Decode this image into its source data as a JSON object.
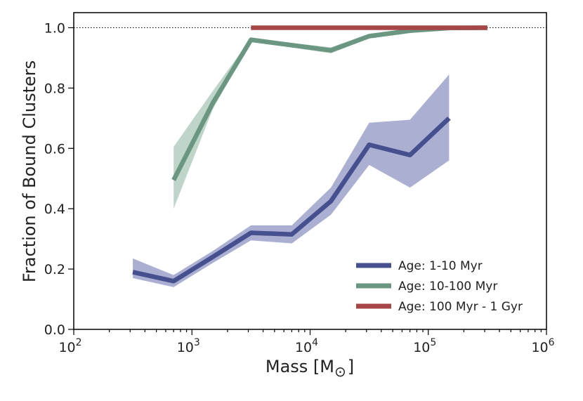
{
  "chart_data": {
    "type": "line",
    "title": "",
    "xlabel": "Mass [M",
    "xlabel_symbol": "⊙",
    "xlabel_close": "]",
    "ylabel": "Fraction of Bound Clusters",
    "xscale": "log",
    "xlim": [
      100,
      1000000
    ],
    "ylim": [
      0.0,
      1.05
    ],
    "xticks": [
      {
        "value": 100,
        "base": "10",
        "exp": "2"
      },
      {
        "value": 1000,
        "base": "10",
        "exp": "3"
      },
      {
        "value": 10000,
        "base": "10",
        "exp": "4"
      },
      {
        "value": 100000,
        "base": "10",
        "exp": "5"
      },
      {
        "value": 1000000,
        "base": "10",
        "exp": "6"
      }
    ],
    "yticks": [
      0.0,
      0.2,
      0.4,
      0.6,
      0.8,
      1.0
    ],
    "ytick_labels": [
      "0.0",
      "0.2",
      "0.4",
      "0.6",
      "0.8",
      "1.0"
    ],
    "reference_line": {
      "y": 1.0,
      "style": "dotted"
    },
    "legend_position": "lower-right",
    "series": [
      {
        "name": "Age: 1-10 Myr",
        "color": "#46508f",
        "band_color": "#8f96c4",
        "x": [
          316,
          700,
          1500,
          3160,
          7000,
          15000,
          31600,
          70000,
          150000
        ],
        "y": [
          0.19,
          0.16,
          0.24,
          0.32,
          0.315,
          0.425,
          0.612,
          0.578,
          0.7
        ],
        "lower": [
          0.17,
          0.14,
          0.22,
          0.295,
          0.285,
          0.38,
          0.545,
          0.47,
          0.56
        ],
        "upper": [
          0.235,
          0.18,
          0.26,
          0.345,
          0.345,
          0.47,
          0.685,
          0.695,
          0.845
        ]
      },
      {
        "name": "Age: 10-100 Myr",
        "color": "#6a9682",
        "band_color": "#a9c7b7",
        "x": [
          700,
          1500,
          3160,
          15000,
          31600,
          70000,
          150000,
          316000
        ],
        "y": [
          0.495,
          0.75,
          0.96,
          0.925,
          0.972,
          0.99,
          0.999,
          1.0
        ],
        "lower": [
          0.4,
          0.73,
          0.955,
          0.915,
          0.965,
          0.985,
          0.995,
          0.998
        ],
        "upper": [
          0.605,
          0.79,
          0.965,
          0.935,
          0.98,
          0.995,
          1.0,
          1.0
        ]
      },
      {
        "name": "Age: 100 Myr - 1 Gyr",
        "color": "#a64646",
        "band_color": "#d89a9a",
        "x": [
          3160,
          316000
        ],
        "y": [
          1.0,
          1.0
        ],
        "lower": [
          1.0,
          1.0
        ],
        "upper": [
          1.0,
          1.0
        ]
      }
    ]
  }
}
